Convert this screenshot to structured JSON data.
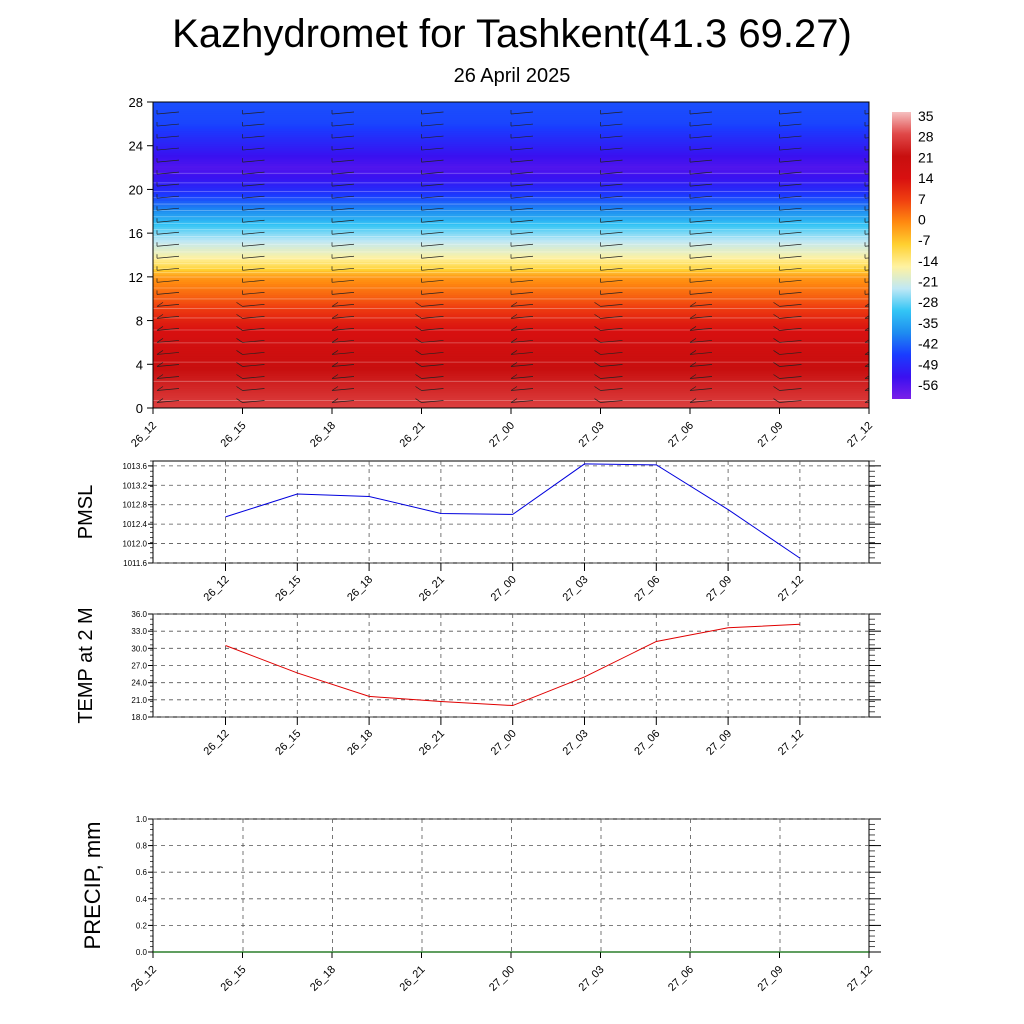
{
  "header": {
    "title": "Kazhydromet for Tashkent(41.3 69.27)",
    "date": "26 April 2025"
  },
  "chart_data": [
    {
      "type": "heatmap",
      "name": "vertical-section",
      "x": [
        "26_12",
        "26_15",
        "26_18",
        "26_21",
        "27_00",
        "27_03",
        "27_06",
        "27_09",
        "27_12"
      ],
      "yticks": [
        0,
        4,
        8,
        12,
        16,
        20,
        24,
        28
      ],
      "ylim": [
        0,
        28
      ],
      "colorbar_labels": [
        35,
        28,
        21,
        14,
        7,
        0,
        -7,
        -14,
        -21,
        -28,
        -35,
        -42,
        -49,
        -56
      ],
      "colorbar_range": [
        -63,
        42
      ],
      "colorscale": [
        "#7a1fe8",
        "#3a10f0",
        "#1a3cff",
        "#1e8cf0",
        "#33c5f5",
        "#bfe8f5",
        "#fff2a0",
        "#ffd030",
        "#ff8a10",
        "#f04010",
        "#d81010",
        "#c80f0f",
        "#e04848",
        "#f6c0c0"
      ],
      "profile": [
        {
          "z": 0,
          "t": 33
        },
        {
          "z": 3,
          "t": 27
        },
        {
          "z": 6,
          "t": 21
        },
        {
          "z": 8,
          "t": 15
        },
        {
          "z": 10,
          "t": 7
        },
        {
          "z": 12,
          "t": 0
        },
        {
          "z": 13,
          "t": -9
        },
        {
          "z": 14,
          "t": -16
        },
        {
          "z": 16,
          "t": -26
        },
        {
          "z": 18,
          "t": -38
        },
        {
          "z": 20,
          "t": -50
        },
        {
          "z": 22,
          "t": -58
        },
        {
          "z": 24,
          "t": -52
        },
        {
          "z": 26,
          "t": -46
        },
        {
          "z": 28,
          "t": -45
        }
      ]
    },
    {
      "type": "line",
      "name": "pmsl",
      "ylabel": "PMSL",
      "categories": [
        "26_12",
        "26_15",
        "26_18",
        "26_21",
        "27_00",
        "27_03",
        "27_06",
        "27_09",
        "27_12"
      ],
      "values": [
        1012.55,
        1013.02,
        1012.97,
        1012.62,
        1012.6,
        1013.64,
        1013.62,
        1012.7,
        1011.7
      ],
      "yticks": [
        "1011.6",
        "1012.0",
        "1012.4",
        "1012.8",
        "1013.2",
        "1013.6"
      ],
      "ylim": [
        1011.6,
        1013.7
      ],
      "color": "#0000dd"
    },
    {
      "type": "line",
      "name": "temp2m",
      "ylabel": "TEMP at 2 M",
      "categories": [
        "26_12",
        "26_15",
        "26_18",
        "26_21",
        "27_00",
        "27_03",
        "27_06",
        "27_09",
        "27_12"
      ],
      "values": [
        30.5,
        25.7,
        21.6,
        20.7,
        20.0,
        25.0,
        31.2,
        33.6,
        34.2
      ],
      "yticks": [
        "18.0",
        "21.0",
        "24.0",
        "27.0",
        "30.0",
        "33.0",
        "36.0"
      ],
      "ylim": [
        18,
        36
      ],
      "color": "#e00000"
    },
    {
      "type": "line",
      "name": "precip",
      "ylabel": "PRECIP, mm",
      "categories": [
        "26_12",
        "26_15",
        "26_18",
        "26_21",
        "27_00",
        "27_03",
        "27_06",
        "27_09",
        "27_12"
      ],
      "values": [
        0,
        0,
        0,
        0,
        0,
        0,
        0,
        0,
        0
      ],
      "yticks": [
        "0.0",
        "0.2",
        "0.4",
        "0.6",
        "0.8",
        "1.0"
      ],
      "ylim": [
        0,
        1
      ],
      "color": "#006400"
    }
  ]
}
